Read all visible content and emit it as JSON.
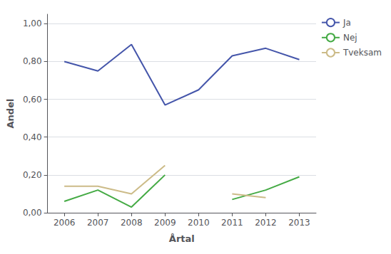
{
  "chart_data": {
    "type": "line",
    "x": [
      2006,
      2007,
      2008,
      2009,
      2010,
      2011,
      2012,
      2013
    ],
    "series": [
      {
        "name": "Ja",
        "color": "#4455aa",
        "values": [
          0.8,
          0.75,
          0.89,
          0.57,
          0.65,
          0.83,
          0.87,
          0.81
        ]
      },
      {
        "name": "Nej",
        "color": "#44aa44",
        "values": [
          0.06,
          0.12,
          0.03,
          0.2,
          null,
          0.07,
          0.12,
          0.19
        ]
      },
      {
        "name": "Tveksam",
        "color": "#ccbb88",
        "values": [
          0.14,
          0.14,
          0.1,
          0.25,
          null,
          0.1,
          0.08,
          null
        ]
      }
    ],
    "xlabel": "Årtal",
    "ylabel": "Andel",
    "xlim": [
      2005.5,
      2013.5
    ],
    "xticks": [
      2006,
      2007,
      2008,
      2009,
      2010,
      2011,
      2012,
      2013
    ],
    "ylim": [
      0.0,
      1.05
    ],
    "yticks": [
      {
        "value": 0.0,
        "label": "0,00"
      },
      {
        "value": 0.2,
        "label": "0,20"
      },
      {
        "value": 0.4,
        "label": "0,40"
      },
      {
        "value": 0.6,
        "label": "0,60"
      },
      {
        "value": 0.8,
        "label": "0,80"
      },
      {
        "value": 1.0,
        "label": "1,00"
      }
    ],
    "grid": true,
    "legend": "right"
  }
}
